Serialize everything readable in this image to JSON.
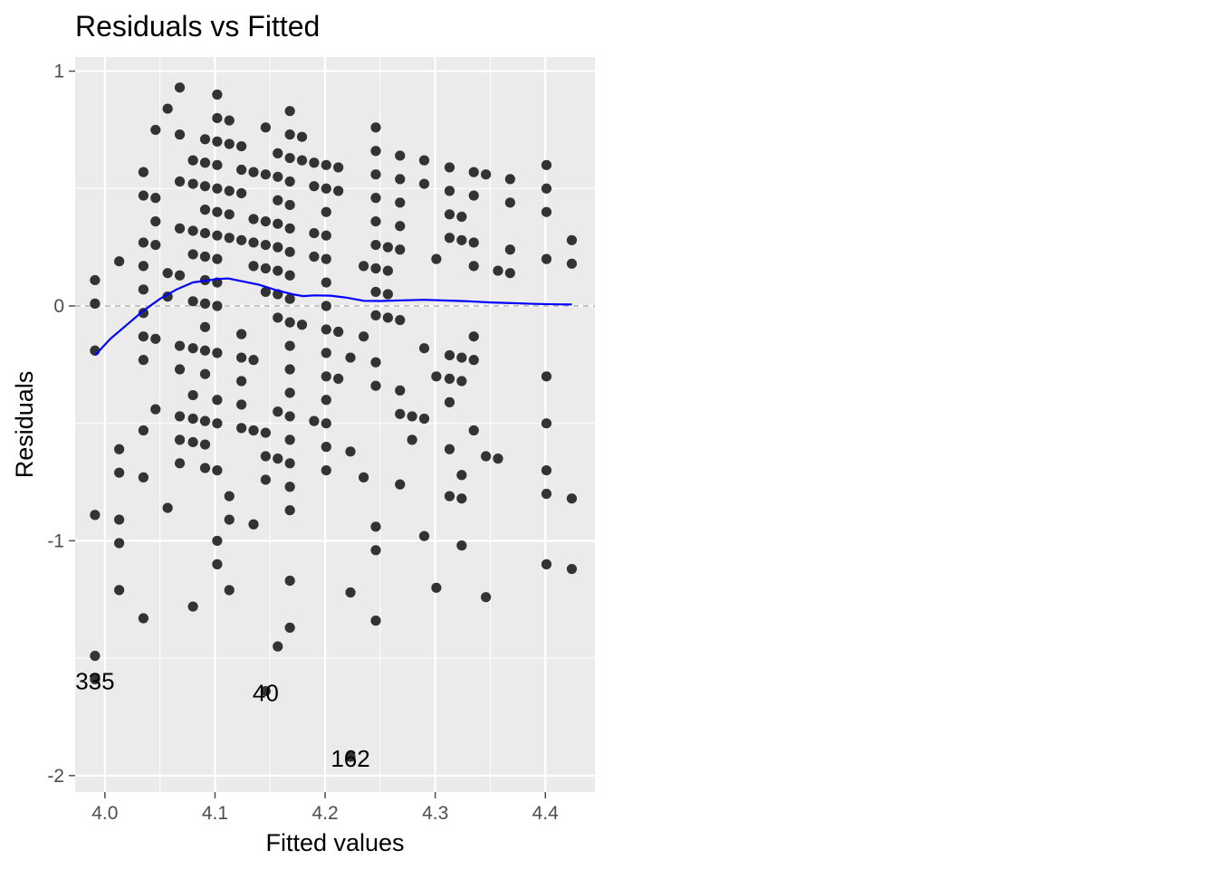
{
  "chart_data": {
    "type": "scatter",
    "title": "Residuals vs Fitted",
    "xlabel": "Fitted values",
    "ylabel": "Residuals",
    "xlim": [
      3.973,
      4.445
    ],
    "ylim": [
      -2.07,
      1.06
    ],
    "xticks": [
      4.0,
      4.1,
      4.2,
      4.3,
      4.4
    ],
    "xtick_labels": [
      "4.0",
      "4.1",
      "4.2",
      "4.3",
      "4.4"
    ],
    "yticks": [
      -2,
      -1,
      0,
      1
    ],
    "ytick_labels": [
      "-2",
      "-1",
      "0",
      "1"
    ],
    "grid": true,
    "reference_line": {
      "y": 0,
      "style": "dashed",
      "color": "#a0a0a0"
    },
    "colors": {
      "panel": "#ebebeb",
      "grid": "#ffffff",
      "points": "#333333",
      "smooth": "#0000ff",
      "ticks": "#4d4d4d"
    },
    "points": [
      [
        3.991,
        0.11
      ],
      [
        3.991,
        0.01
      ],
      [
        3.991,
        -0.19
      ],
      [
        3.991,
        -0.89
      ],
      [
        3.991,
        -1.49
      ],
      [
        3.991,
        -1.59
      ],
      [
        4.013,
        0.19
      ],
      [
        4.013,
        -0.61
      ],
      [
        4.013,
        -0.71
      ],
      [
        4.013,
        -0.91
      ],
      [
        4.013,
        -1.01
      ],
      [
        4.013,
        -1.21
      ],
      [
        4.035,
        0.57
      ],
      [
        4.035,
        0.47
      ],
      [
        4.035,
        0.27
      ],
      [
        4.035,
        0.17
      ],
      [
        4.035,
        0.07
      ],
      [
        4.035,
        -0.03
      ],
      [
        4.035,
        -0.13
      ],
      [
        4.035,
        -0.23
      ],
      [
        4.035,
        -0.53
      ],
      [
        4.035,
        -0.73
      ],
      [
        4.035,
        -1.33
      ],
      [
        4.046,
        0.75
      ],
      [
        4.046,
        0.46
      ],
      [
        4.046,
        0.36
      ],
      [
        4.046,
        0.26
      ],
      [
        4.046,
        -0.14
      ],
      [
        4.046,
        -0.44
      ],
      [
        4.057,
        0.84
      ],
      [
        4.057,
        0.14
      ],
      [
        4.057,
        0.04
      ],
      [
        4.057,
        -0.86
      ],
      [
        4.068,
        0.93
      ],
      [
        4.068,
        0.73
      ],
      [
        4.068,
        0.53
      ],
      [
        4.068,
        0.33
      ],
      [
        4.068,
        0.13
      ],
      [
        4.068,
        -0.17
      ],
      [
        4.068,
        -0.27
      ],
      [
        4.068,
        -0.47
      ],
      [
        4.068,
        -0.57
      ],
      [
        4.068,
        -0.67
      ],
      [
        4.08,
        0.62
      ],
      [
        4.08,
        0.52
      ],
      [
        4.08,
        0.32
      ],
      [
        4.08,
        0.22
      ],
      [
        4.08,
        0.02
      ],
      [
        4.08,
        -0.18
      ],
      [
        4.08,
        -0.38
      ],
      [
        4.08,
        -0.48
      ],
      [
        4.08,
        -0.58
      ],
      [
        4.08,
        -1.28
      ],
      [
        4.091,
        0.71
      ],
      [
        4.091,
        0.61
      ],
      [
        4.091,
        0.51
      ],
      [
        4.091,
        0.41
      ],
      [
        4.091,
        0.31
      ],
      [
        4.091,
        0.21
      ],
      [
        4.091,
        0.11
      ],
      [
        4.091,
        0.01
      ],
      [
        4.091,
        -0.09
      ],
      [
        4.091,
        -0.19
      ],
      [
        4.091,
        -0.29
      ],
      [
        4.091,
        -0.49
      ],
      [
        4.091,
        -0.59
      ],
      [
        4.091,
        -0.69
      ],
      [
        4.102,
        0.9
      ],
      [
        4.102,
        0.8
      ],
      [
        4.102,
        0.7
      ],
      [
        4.102,
        0.6
      ],
      [
        4.102,
        0.5
      ],
      [
        4.102,
        0.4
      ],
      [
        4.102,
        0.3
      ],
      [
        4.102,
        0.2
      ],
      [
        4.102,
        0.1
      ],
      [
        4.102,
        0.0
      ],
      [
        4.102,
        -0.2
      ],
      [
        4.102,
        -0.4
      ],
      [
        4.102,
        -0.5
      ],
      [
        4.102,
        -0.7
      ],
      [
        4.102,
        -1.0
      ],
      [
        4.102,
        -1.1
      ],
      [
        4.113,
        0.79
      ],
      [
        4.113,
        0.69
      ],
      [
        4.113,
        0.49
      ],
      [
        4.113,
        0.39
      ],
      [
        4.113,
        0.29
      ],
      [
        4.113,
        -0.81
      ],
      [
        4.113,
        -0.91
      ],
      [
        4.113,
        -1.21
      ],
      [
        4.124,
        0.68
      ],
      [
        4.124,
        0.58
      ],
      [
        4.124,
        0.48
      ],
      [
        4.124,
        0.28
      ],
      [
        4.124,
        -0.12
      ],
      [
        4.124,
        -0.22
      ],
      [
        4.124,
        -0.32
      ],
      [
        4.124,
        -0.42
      ],
      [
        4.124,
        -0.52
      ],
      [
        4.135,
        0.57
      ],
      [
        4.135,
        0.37
      ],
      [
        4.135,
        0.27
      ],
      [
        4.135,
        0.17
      ],
      [
        4.135,
        -0.23
      ],
      [
        4.135,
        -0.53
      ],
      [
        4.135,
        -0.93
      ],
      [
        4.146,
        0.76
      ],
      [
        4.146,
        0.56
      ],
      [
        4.146,
        0.36
      ],
      [
        4.146,
        0.26
      ],
      [
        4.146,
        0.16
      ],
      [
        4.146,
        0.06
      ],
      [
        4.146,
        -0.54
      ],
      [
        4.146,
        -0.64
      ],
      [
        4.146,
        -0.74
      ],
      [
        4.146,
        -1.64
      ],
      [
        4.157,
        0.65
      ],
      [
        4.157,
        0.55
      ],
      [
        4.157,
        0.45
      ],
      [
        4.157,
        0.35
      ],
      [
        4.157,
        0.25
      ],
      [
        4.157,
        0.15
      ],
      [
        4.157,
        0.05
      ],
      [
        4.157,
        -0.05
      ],
      [
        4.157,
        -0.45
      ],
      [
        4.157,
        -0.65
      ],
      [
        4.157,
        -1.45
      ],
      [
        4.168,
        0.83
      ],
      [
        4.168,
        0.73
      ],
      [
        4.168,
        0.63
      ],
      [
        4.168,
        0.53
      ],
      [
        4.168,
        0.43
      ],
      [
        4.168,
        0.33
      ],
      [
        4.168,
        0.23
      ],
      [
        4.168,
        0.13
      ],
      [
        4.168,
        0.03
      ],
      [
        4.168,
        -0.07
      ],
      [
        4.168,
        -0.17
      ],
      [
        4.168,
        -0.27
      ],
      [
        4.168,
        -0.37
      ],
      [
        4.168,
        -0.47
      ],
      [
        4.168,
        -0.57
      ],
      [
        4.168,
        -0.67
      ],
      [
        4.168,
        -0.77
      ],
      [
        4.168,
        -0.87
      ],
      [
        4.168,
        -1.17
      ],
      [
        4.168,
        -1.37
      ],
      [
        4.179,
        0.72
      ],
      [
        4.179,
        0.62
      ],
      [
        4.179,
        -0.08
      ],
      [
        4.19,
        0.61
      ],
      [
        4.19,
        0.51
      ],
      [
        4.19,
        0.31
      ],
      [
        4.19,
        0.21
      ],
      [
        4.19,
        -0.49
      ],
      [
        4.201,
        0.6
      ],
      [
        4.201,
        0.5
      ],
      [
        4.201,
        0.4
      ],
      [
        4.201,
        0.3
      ],
      [
        4.201,
        0.2
      ],
      [
        4.201,
        0.1
      ],
      [
        4.201,
        0.0
      ],
      [
        4.201,
        -0.1
      ],
      [
        4.201,
        -0.2
      ],
      [
        4.201,
        -0.3
      ],
      [
        4.201,
        -0.4
      ],
      [
        4.201,
        -0.5
      ],
      [
        4.201,
        -0.6
      ],
      [
        4.201,
        -0.7
      ],
      [
        4.212,
        0.59
      ],
      [
        4.212,
        0.49
      ],
      [
        4.212,
        -0.11
      ],
      [
        4.212,
        -0.31
      ],
      [
        4.223,
        -0.22
      ],
      [
        4.223,
        -0.62
      ],
      [
        4.223,
        -1.22
      ],
      [
        4.223,
        -1.92
      ],
      [
        4.235,
        0.17
      ],
      [
        4.235,
        -0.13
      ],
      [
        4.235,
        -0.73
      ],
      [
        4.246,
        0.76
      ],
      [
        4.246,
        0.66
      ],
      [
        4.246,
        0.56
      ],
      [
        4.246,
        0.46
      ],
      [
        4.246,
        0.36
      ],
      [
        4.246,
        0.26
      ],
      [
        4.246,
        0.16
      ],
      [
        4.246,
        0.06
      ],
      [
        4.246,
        -0.04
      ],
      [
        4.246,
        -0.24
      ],
      [
        4.246,
        -0.34
      ],
      [
        4.246,
        -0.94
      ],
      [
        4.246,
        -1.04
      ],
      [
        4.246,
        -1.34
      ],
      [
        4.257,
        0.25
      ],
      [
        4.257,
        0.15
      ],
      [
        4.257,
        0.05
      ],
      [
        4.257,
        -0.05
      ],
      [
        4.268,
        0.64
      ],
      [
        4.268,
        0.54
      ],
      [
        4.268,
        0.44
      ],
      [
        4.268,
        0.34
      ],
      [
        4.268,
        0.24
      ],
      [
        4.268,
        -0.06
      ],
      [
        4.268,
        -0.36
      ],
      [
        4.268,
        -0.46
      ],
      [
        4.268,
        -0.76
      ],
      [
        4.279,
        -0.47
      ],
      [
        4.279,
        -0.57
      ],
      [
        4.29,
        0.62
      ],
      [
        4.29,
        0.52
      ],
      [
        4.29,
        -0.18
      ],
      [
        4.29,
        -0.48
      ],
      [
        4.29,
        -0.98
      ],
      [
        4.301,
        0.2
      ],
      [
        4.301,
        -0.3
      ],
      [
        4.301,
        -1.2
      ],
      [
        4.313,
        0.59
      ],
      [
        4.313,
        0.49
      ],
      [
        4.313,
        0.39
      ],
      [
        4.313,
        0.29
      ],
      [
        4.313,
        -0.21
      ],
      [
        4.313,
        -0.31
      ],
      [
        4.313,
        -0.41
      ],
      [
        4.313,
        -0.61
      ],
      [
        4.313,
        -0.81
      ],
      [
        4.324,
        0.38
      ],
      [
        4.324,
        0.28
      ],
      [
        4.324,
        -0.22
      ],
      [
        4.324,
        -0.32
      ],
      [
        4.324,
        -0.72
      ],
      [
        4.324,
        -0.82
      ],
      [
        4.324,
        -1.02
      ],
      [
        4.335,
        0.57
      ],
      [
        4.335,
        0.47
      ],
      [
        4.335,
        0.27
      ],
      [
        4.335,
        0.17
      ],
      [
        4.335,
        -0.13
      ],
      [
        4.335,
        -0.23
      ],
      [
        4.335,
        -0.53
      ],
      [
        4.346,
        0.56
      ],
      [
        4.346,
        -0.64
      ],
      [
        4.346,
        -1.24
      ],
      [
        4.357,
        0.15
      ],
      [
        4.357,
        -0.65
      ],
      [
        4.368,
        0.54
      ],
      [
        4.368,
        0.44
      ],
      [
        4.368,
        0.24
      ],
      [
        4.368,
        0.14
      ],
      [
        4.401,
        0.6
      ],
      [
        4.401,
        0.5
      ],
      [
        4.401,
        0.4
      ],
      [
        4.401,
        0.2
      ],
      [
        4.401,
        -0.3
      ],
      [
        4.401,
        -0.5
      ],
      [
        4.401,
        -0.7
      ],
      [
        4.401,
        -0.8
      ],
      [
        4.401,
        -1.1
      ],
      [
        4.424,
        0.28
      ],
      [
        4.424,
        0.18
      ],
      [
        4.424,
        -0.82
      ],
      [
        4.424,
        -1.12
      ]
    ],
    "smooth_line": [
      [
        3.991,
        -0.21
      ],
      [
        4.005,
        -0.14
      ],
      [
        4.02,
        -0.08
      ],
      [
        4.035,
        -0.02
      ],
      [
        4.05,
        0.03
      ],
      [
        4.065,
        0.07
      ],
      [
        4.08,
        0.1
      ],
      [
        4.095,
        0.11
      ],
      [
        4.102,
        0.115
      ],
      [
        4.112,
        0.117
      ],
      [
        4.125,
        0.105
      ],
      [
        4.14,
        0.09
      ],
      [
        4.155,
        0.068
      ],
      [
        4.17,
        0.05
      ],
      [
        4.18,
        0.042
      ],
      [
        4.19,
        0.045
      ],
      [
        4.205,
        0.044
      ],
      [
        4.22,
        0.035
      ],
      [
        4.235,
        0.022
      ],
      [
        4.25,
        0.021
      ],
      [
        4.27,
        0.024
      ],
      [
        4.29,
        0.026
      ],
      [
        4.31,
        0.023
      ],
      [
        4.33,
        0.02
      ],
      [
        4.35,
        0.015
      ],
      [
        4.37,
        0.012
      ],
      [
        4.39,
        0.009
      ],
      [
        4.41,
        0.007
      ],
      [
        4.424,
        0.006
      ]
    ],
    "annotations": [
      {
        "label": "335",
        "x": 3.991,
        "y": -1.59
      },
      {
        "label": "40",
        "x": 4.146,
        "y": -1.64
      },
      {
        "label": "162",
        "x": 4.223,
        "y": -1.92
      }
    ]
  }
}
